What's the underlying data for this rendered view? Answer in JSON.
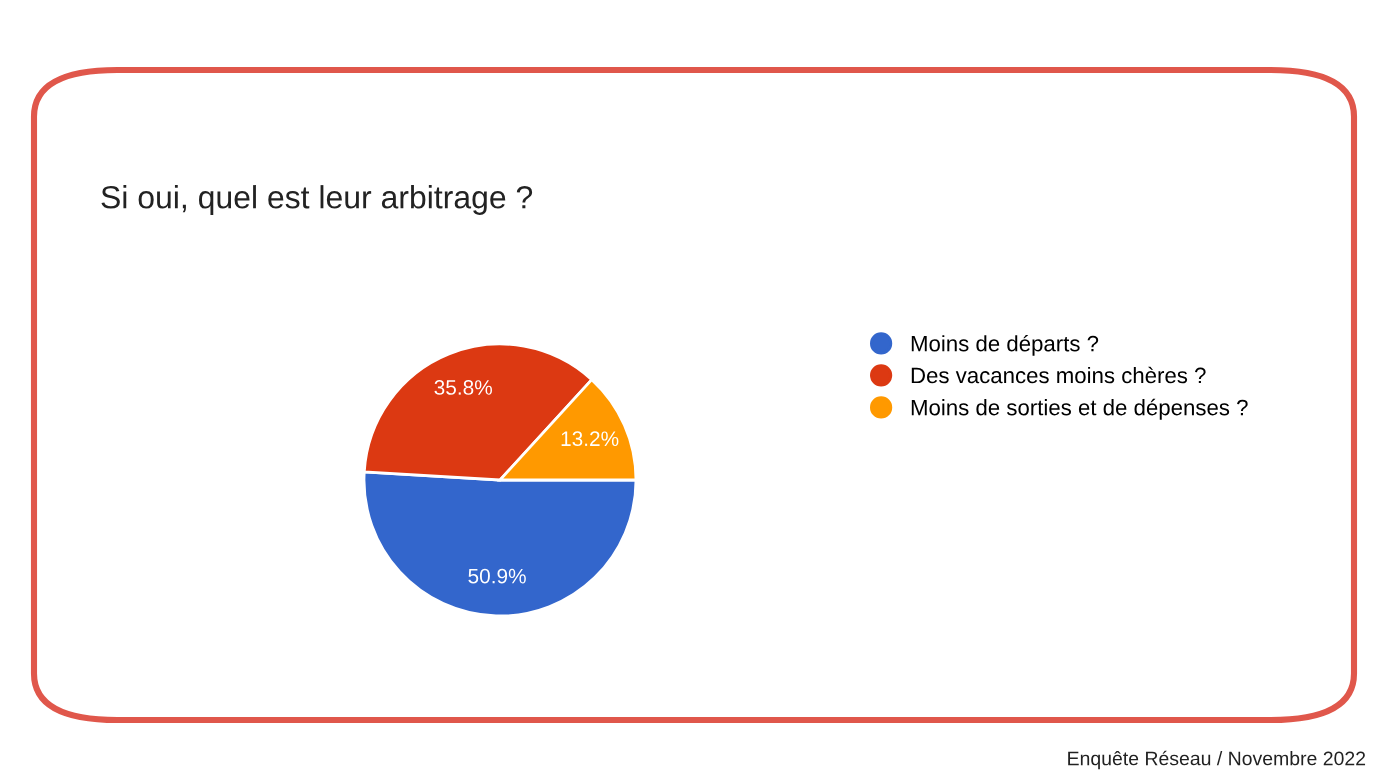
{
  "chart_data": {
    "type": "pie",
    "title": "Si oui, quel est leur arbitrage ?",
    "categories": [
      "Moins de départs ?",
      "Des vacances moins chères ?",
      "Moins de sorties et de dépenses ?"
    ],
    "values": [
      50.9,
      35.8,
      13.2
    ],
    "colors": [
      "#3366cc",
      "#dc3912",
      "#ff9900"
    ],
    "value_labels": [
      "50.9%",
      "35.8%",
      "13.2%"
    ],
    "legend": "right",
    "annotations": [
      "Enquête Réseau / Novembre 2022"
    ]
  }
}
